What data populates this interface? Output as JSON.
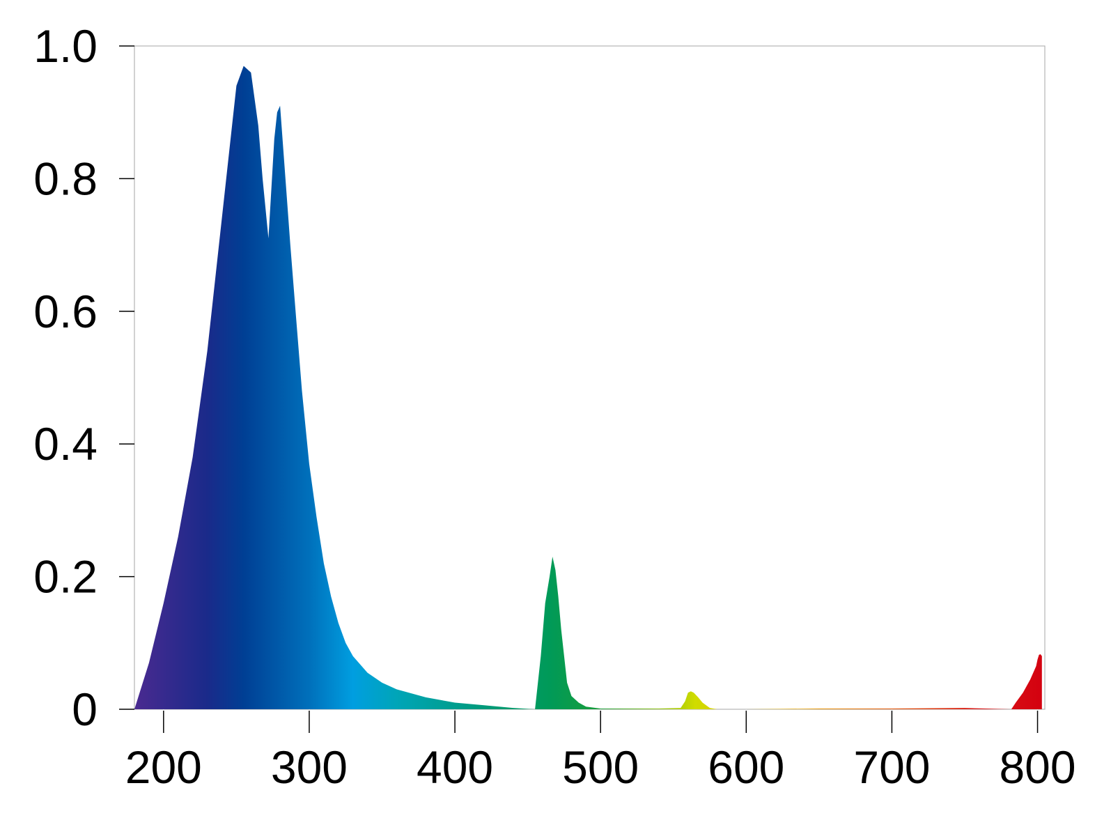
{
  "chart_data": {
    "type": "area",
    "title": "",
    "xlabel": "",
    "ylabel": "",
    "xlim": [
      180,
      805
    ],
    "ylim": [
      0,
      1.0
    ],
    "x_ticks": [
      200,
      300,
      400,
      500,
      600,
      700,
      800
    ],
    "x_tick_labels": [
      "200",
      "300",
      "400",
      "500",
      "600",
      "700",
      "800"
    ],
    "y_ticks": [
      0,
      0.2,
      0.4,
      0.6,
      0.8,
      1.0
    ],
    "y_tick_labels": [
      "0",
      "0.2",
      "0.4",
      "0.6",
      "0.8",
      "1.0"
    ],
    "grid": false,
    "legend": "none",
    "fill": "wavelength color gradient",
    "gradient_stops": [
      {
        "x": 180,
        "color": "#4a2a90"
      },
      {
        "x": 230,
        "color": "#1a2a8a"
      },
      {
        "x": 255,
        "color": "#003f94"
      },
      {
        "x": 300,
        "color": "#0070bb"
      },
      {
        "x": 330,
        "color": "#009ee0"
      },
      {
        "x": 360,
        "color": "#00a5b8"
      },
      {
        "x": 420,
        "color": "#009a7a"
      },
      {
        "x": 465,
        "color": "#009a58"
      },
      {
        "x": 500,
        "color": "#1a9d3a"
      },
      {
        "x": 540,
        "color": "#8cbf10"
      },
      {
        "x": 565,
        "color": "#d0dc00"
      },
      {
        "x": 590,
        "color": "#d9c800"
      },
      {
        "x": 640,
        "color": "#e8a000"
      },
      {
        "x": 700,
        "color": "#e05000"
      },
      {
        "x": 760,
        "color": "#d81818"
      },
      {
        "x": 805,
        "color": "#d4000f"
      }
    ],
    "series": [
      {
        "x": [
          180,
          190,
          200,
          210,
          220,
          230,
          240,
          250,
          255,
          260,
          265,
          268,
          272,
          276,
          278,
          280,
          283,
          287,
          291,
          295,
          300,
          305,
          310,
          315,
          320,
          325,
          330,
          340,
          350,
          360,
          380,
          400,
          420,
          440,
          455,
          459,
          462,
          465,
          467,
          469,
          471,
          473,
          475,
          477,
          480,
          485,
          490,
          500,
          520,
          540,
          555,
          558,
          560,
          562,
          564,
          567,
          570,
          575,
          580,
          600,
          650,
          700,
          750,
          782,
          785,
          790,
          795,
          799,
          800,
          801,
          802,
          803
        ],
        "y": [
          0,
          0.07,
          0.16,
          0.26,
          0.38,
          0.54,
          0.74,
          0.94,
          0.97,
          0.96,
          0.88,
          0.8,
          0.71,
          0.86,
          0.9,
          0.91,
          0.82,
          0.7,
          0.59,
          0.48,
          0.37,
          0.29,
          0.22,
          0.17,
          0.13,
          0.1,
          0.08,
          0.055,
          0.04,
          0.03,
          0.018,
          0.01,
          0.006,
          0.002,
          0,
          0.08,
          0.16,
          0.2,
          0.23,
          0.21,
          0.17,
          0.12,
          0.08,
          0.04,
          0.02,
          0.01,
          0.004,
          0.001,
          0.001,
          0.001,
          0.002,
          0.012,
          0.025,
          0.027,
          0.025,
          0.018,
          0.01,
          0.002,
          0,
          0,
          0.001,
          0.001,
          0.002,
          0,
          0.01,
          0.025,
          0.045,
          0.065,
          0.075,
          0.082,
          0.083,
          0.08
        ]
      }
    ]
  }
}
